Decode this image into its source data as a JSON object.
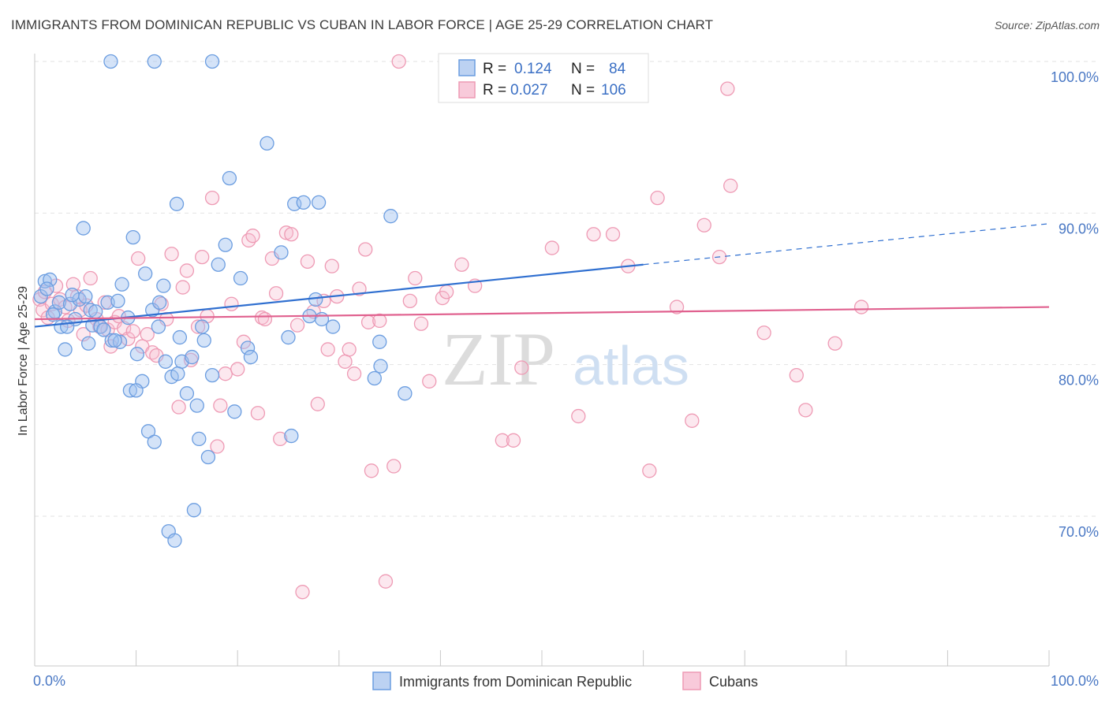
{
  "header": {
    "title": "IMMIGRANTS FROM DOMINICAN REPUBLIC VS CUBAN IN LABOR FORCE | AGE 25-29 CORRELATION CHART",
    "source": "Source: ZipAtlas.com"
  },
  "watermark": {
    "zip": "ZIP",
    "atlas": "atlas"
  },
  "stats_box": {
    "row1": {
      "r_label": "R =",
      "r_value": "0.124",
      "n_label": "N =",
      "n_value": "84"
    },
    "row2": {
      "r_label": "R =",
      "r_value": "0.027",
      "n_label": "N =",
      "n_value": "106"
    }
  },
  "chart_data": {
    "type": "scatter",
    "title": "IMMIGRANTS FROM DOMINICAN REPUBLIC VS CUBAN IN LABOR FORCE | AGE 25-29 CORRELATION CHART",
    "xlabel": "",
    "ylabel": "In Labor Force | Age 25-29",
    "xlim": [
      0,
      100
    ],
    "ylim": [
      60,
      101.3
    ],
    "x_tick_labels": [
      "0.0%",
      "100.0%"
    ],
    "y_ticks": [
      70,
      80,
      90,
      100
    ],
    "y_tick_labels": [
      "70.0%",
      "80.0%",
      "90.0%",
      "100.0%"
    ],
    "grid": true,
    "legend_position": "bottom",
    "colors": {
      "dominican": "#6b9de0",
      "cuban": "#ee9ab4",
      "dominican_line": "#2f6fd0",
      "cuban_line": "#e0608e",
      "axis": "#4a78c4"
    },
    "series": [
      {
        "name": "Immigrants from Dominican Republic",
        "r": 0.124,
        "n": 84,
        "trend": {
          "x0": 0,
          "y0": 82.5,
          "x1": 60,
          "y1": 86.6,
          "dashed_to_x": 100,
          "dashed_to_y": 89.3
        },
        "points": [
          [
            7.5,
            100
          ],
          [
            11.8,
            100
          ],
          [
            17.5,
            100
          ],
          [
            1.0,
            85.5
          ],
          [
            0.6,
            84.5
          ],
          [
            1.5,
            85.6
          ],
          [
            2.0,
            83.5
          ],
          [
            2.4,
            84.1
          ],
          [
            1.8,
            83.3
          ],
          [
            2.6,
            82.5
          ],
          [
            3.0,
            81.0
          ],
          [
            3.5,
            84.0
          ],
          [
            4.0,
            83.0
          ],
          [
            3.2,
            82.5
          ],
          [
            4.4,
            84.3
          ],
          [
            5.0,
            84.5
          ],
          [
            5.5,
            83.6
          ],
          [
            5.7,
            82.6
          ],
          [
            6.0,
            83.5
          ],
          [
            5.3,
            81.4
          ],
          [
            6.5,
            82.5
          ],
          [
            7.2,
            84.1
          ],
          [
            7.6,
            81.6
          ],
          [
            8.2,
            84.2
          ],
          [
            8.4,
            81.5
          ],
          [
            8.6,
            85.3
          ],
          [
            9.2,
            83.1
          ],
          [
            9.4,
            78.3
          ],
          [
            9.7,
            88.4
          ],
          [
            10.1,
            80.7
          ],
          [
            10.6,
            78.9
          ],
          [
            10.9,
            86.0
          ],
          [
            11.2,
            75.6
          ],
          [
            11.6,
            83.6
          ],
          [
            11.8,
            74.9
          ],
          [
            12.2,
            82.5
          ],
          [
            12.3,
            84.1
          ],
          [
            12.7,
            85.2
          ],
          [
            13.2,
            69.0
          ],
          [
            13.5,
            79.2
          ],
          [
            13.8,
            68.4
          ],
          [
            14.0,
            90.6
          ],
          [
            14.3,
            81.8
          ],
          [
            14.5,
            80.2
          ],
          [
            15.0,
            78.1
          ],
          [
            15.5,
            80.5
          ],
          [
            15.7,
            70.4
          ],
          [
            16.0,
            77.3
          ],
          [
            16.2,
            75.1
          ],
          [
            16.5,
            82.5
          ],
          [
            16.7,
            81.6
          ],
          [
            17.1,
            73.9
          ],
          [
            17.5,
            79.3
          ],
          [
            18.1,
            86.6
          ],
          [
            18.8,
            87.9
          ],
          [
            19.2,
            92.3
          ],
          [
            19.7,
            76.9
          ],
          [
            20.3,
            85.7
          ],
          [
            21.0,
            81.1
          ],
          [
            21.3,
            80.5
          ],
          [
            22.9,
            94.6
          ],
          [
            24.3,
            87.4
          ],
          [
            25.0,
            81.8
          ],
          [
            25.3,
            75.3
          ],
          [
            25.6,
            90.6
          ],
          [
            26.5,
            90.7
          ],
          [
            27.1,
            83.2
          ],
          [
            27.7,
            84.3
          ],
          [
            28.0,
            90.7
          ],
          [
            28.3,
            83.0
          ],
          [
            29.4,
            82.5
          ],
          [
            34.0,
            81.5
          ],
          [
            34.1,
            79.9
          ],
          [
            33.5,
            79.1
          ],
          [
            35.1,
            89.8
          ],
          [
            36.5,
            78.1
          ],
          [
            4.8,
            89.0
          ],
          [
            10.0,
            78.3
          ],
          [
            14.1,
            79.4
          ],
          [
            3.7,
            84.6
          ],
          [
            1.2,
            85.0
          ],
          [
            6.8,
            82.3
          ],
          [
            12.9,
            80.2
          ],
          [
            7.9,
            81.6
          ]
        ]
      },
      {
        "name": "Cubans",
        "r": 0.027,
        "n": 106,
        "trend": {
          "x0": 0,
          "y0": 83.0,
          "x1": 100,
          "y1": 83.8
        },
        "points": [
          [
            0.5,
            84.3
          ],
          [
            0.8,
            83.6
          ],
          [
            1.0,
            84.8
          ],
          [
            1.3,
            83.1
          ],
          [
            1.7,
            84.0
          ],
          [
            2.1,
            85.2
          ],
          [
            2.5,
            84.3
          ],
          [
            3.0,
            83.8
          ],
          [
            3.3,
            82.9
          ],
          [
            3.8,
            85.3
          ],
          [
            4.2,
            84.5
          ],
          [
            4.5,
            83.6
          ],
          [
            4.8,
            82.0
          ],
          [
            5.1,
            83.9
          ],
          [
            5.5,
            85.7
          ],
          [
            6.1,
            83.0
          ],
          [
            6.4,
            82.5
          ],
          [
            6.9,
            84.1
          ],
          [
            7.2,
            82.3
          ],
          [
            7.5,
            81.2
          ],
          [
            7.9,
            82.8
          ],
          [
            8.3,
            83.2
          ],
          [
            8.8,
            82.4
          ],
          [
            9.2,
            81.7
          ],
          [
            9.7,
            82.2
          ],
          [
            10.2,
            87.0
          ],
          [
            10.6,
            81.2
          ],
          [
            11.1,
            82.0
          ],
          [
            11.6,
            80.8
          ],
          [
            12.0,
            80.6
          ],
          [
            12.5,
            84.0
          ],
          [
            13.0,
            83.0
          ],
          [
            13.5,
            87.3
          ],
          [
            14.2,
            77.2
          ],
          [
            14.6,
            85.1
          ],
          [
            15.0,
            86.2
          ],
          [
            15.4,
            80.3
          ],
          [
            16.1,
            82.5
          ],
          [
            16.5,
            87.1
          ],
          [
            17.0,
            83.2
          ],
          [
            17.5,
            91.0
          ],
          [
            18.0,
            74.6
          ],
          [
            18.3,
            77.3
          ],
          [
            18.8,
            79.4
          ],
          [
            19.4,
            84.0
          ],
          [
            20.0,
            79.7
          ],
          [
            20.6,
            81.5
          ],
          [
            21.1,
            88.2
          ],
          [
            21.5,
            88.5
          ],
          [
            22.0,
            76.8
          ],
          [
            22.4,
            83.1
          ],
          [
            22.7,
            83.0
          ],
          [
            23.4,
            87.0
          ],
          [
            23.8,
            84.7
          ],
          [
            24.2,
            75.1
          ],
          [
            24.8,
            88.7
          ],
          [
            25.3,
            88.6
          ],
          [
            25.9,
            82.6
          ],
          [
            26.4,
            65.0
          ],
          [
            26.9,
            86.8
          ],
          [
            27.5,
            83.5
          ],
          [
            27.9,
            77.4
          ],
          [
            28.5,
            84.2
          ],
          [
            28.9,
            81.0
          ],
          [
            29.3,
            86.5
          ],
          [
            29.8,
            84.5
          ],
          [
            30.6,
            80.2
          ],
          [
            31.0,
            81.0
          ],
          [
            31.5,
            79.4
          ],
          [
            32.0,
            85.0
          ],
          [
            32.6,
            87.6
          ],
          [
            32.9,
            82.8
          ],
          [
            33.2,
            73.0
          ],
          [
            34.0,
            82.9
          ],
          [
            34.6,
            65.7
          ],
          [
            35.4,
            73.3
          ],
          [
            35.9,
            100
          ],
          [
            37.0,
            84.2
          ],
          [
            37.5,
            85.7
          ],
          [
            38.1,
            82.7
          ],
          [
            38.9,
            78.9
          ],
          [
            40.2,
            84.4
          ],
          [
            40.6,
            84.8
          ],
          [
            42.1,
            86.6
          ],
          [
            43.4,
            85.2
          ],
          [
            46.1,
            75.0
          ],
          [
            47.2,
            75.0
          ],
          [
            48.0,
            79.8
          ],
          [
            51.0,
            87.7
          ],
          [
            53.6,
            76.6
          ],
          [
            55.1,
            88.6
          ],
          [
            57.0,
            88.6
          ],
          [
            58.5,
            86.5
          ],
          [
            60.6,
            73.0
          ],
          [
            61.4,
            91.0
          ],
          [
            63.3,
            83.8
          ],
          [
            64.8,
            76.3
          ],
          [
            66.0,
            89.2
          ],
          [
            67.5,
            87.1
          ],
          [
            68.6,
            91.8
          ],
          [
            71.9,
            82.1
          ],
          [
            75.1,
            79.3
          ],
          [
            76.0,
            77.0
          ],
          [
            78.9,
            81.4
          ],
          [
            81.5,
            83.8
          ],
          [
            68.3,
            98.2
          ]
        ]
      }
    ]
  },
  "legend": {
    "items": [
      {
        "label": "Immigrants from Dominican Republic"
      },
      {
        "label": "Cubans"
      }
    ]
  }
}
